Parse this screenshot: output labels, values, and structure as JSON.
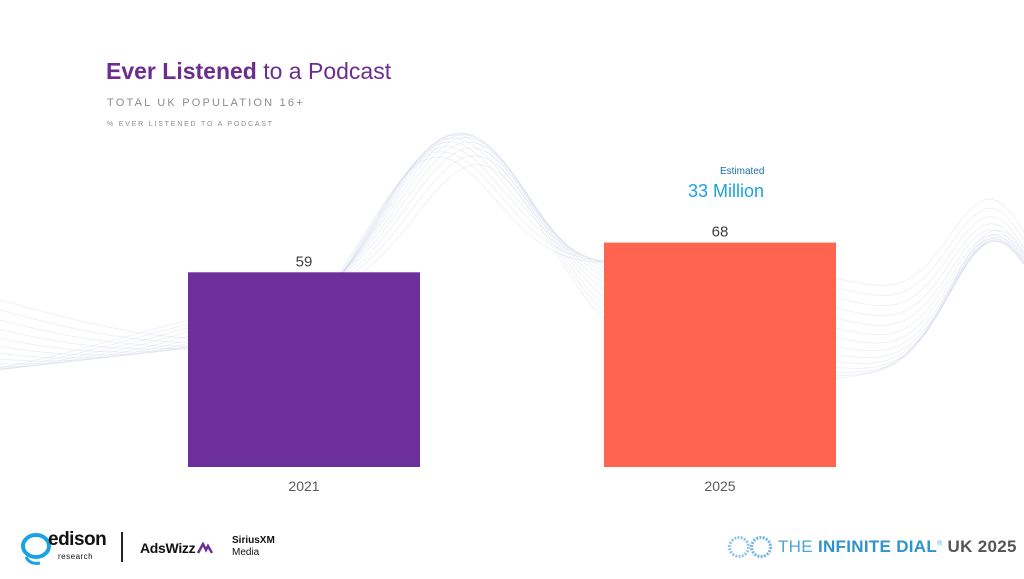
{
  "header": {
    "title_bold": "Ever Listened",
    "title_rest": " to a Podcast",
    "subtitle": "TOTAL UK POPULATION 16+",
    "caption": "% EVER LISTENED TO A PODCAST"
  },
  "annotation": {
    "label": "Estimated",
    "value": "33 Million"
  },
  "chart_data": {
    "type": "bar",
    "title": "Ever Listened to a Podcast",
    "subtitle": "TOTAL UK POPULATION 16+",
    "ylabel": "% EVER LISTENED TO A PODCAST",
    "xlabel": "",
    "categories": [
      "2021",
      "2025"
    ],
    "values": [
      59,
      68
    ],
    "colors": [
      "#6c2f9c",
      "#ff6450"
    ],
    "ylim": [
      0,
      100
    ],
    "grid": false,
    "legend": "none"
  },
  "footer": {
    "edison": "edison",
    "edison_sub": "research",
    "adswizz": "AdsWizz",
    "sirius_top": "SiriusXM",
    "sirius_bottom": "Media",
    "infinite_the": "THE ",
    "infinite_name": "INFINITE DIAL",
    "infinite_reg": "®",
    "infinite_tail": " UK 2025"
  }
}
